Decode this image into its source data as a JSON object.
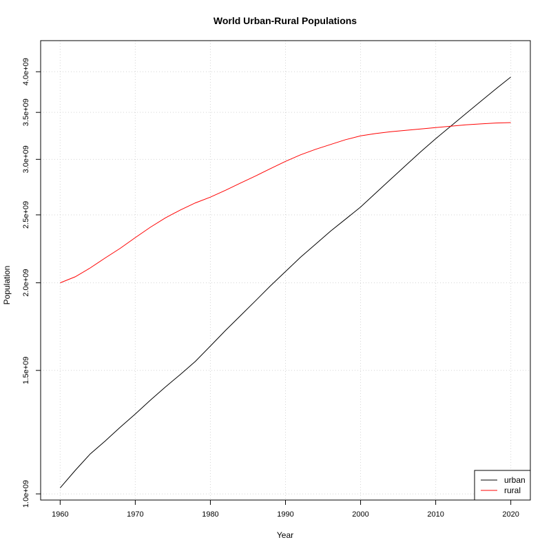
{
  "chart_data": {
    "type": "line",
    "title": "World Urban-Rural Populations",
    "xlabel": "Year",
    "ylabel": "Population",
    "x_ticks": [
      1960,
      1970,
      1980,
      1990,
      2000,
      2010,
      2020
    ],
    "y_ticks": [
      1000000000.0,
      1500000000.0,
      2000000000.0,
      2500000000.0,
      3000000000.0,
      3500000000.0,
      4000000000.0
    ],
    "y_tick_labels": [
      "1.0e+09",
      "1.5e+09",
      "2.0e+09",
      "2.5e+09",
      "3.0e+09",
      "3.5e+09",
      "4.0e+09"
    ],
    "xlim": [
      1957.4,
      2022.6
    ],
    "ylim": [
      980000000.0,
      4430000000.0
    ],
    "y_scale": "log",
    "grid": true,
    "legend_position": "bottom-right",
    "series": [
      {
        "name": "urban",
        "color": "#000000",
        "x": [
          1960,
          1962,
          1964,
          1966,
          1968,
          1970,
          1972,
          1974,
          1976,
          1978,
          1980,
          1982,
          1984,
          1986,
          1988,
          1990,
          1992,
          1994,
          1996,
          1998,
          2000,
          2002,
          2004,
          2006,
          2008,
          2010,
          2012,
          2014,
          2016,
          2018,
          2020
        ],
        "y": [
          1020000000.0,
          1080000000.0,
          1140000000.0,
          1190000000.0,
          1245000000.0,
          1300000000.0,
          1360000000.0,
          1420000000.0,
          1480000000.0,
          1545000000.0,
          1625000000.0,
          1710000000.0,
          1795000000.0,
          1885000000.0,
          1980000000.0,
          2075000000.0,
          2175000000.0,
          2270000000.0,
          2370000000.0,
          2465000000.0,
          2565000000.0,
          2685000000.0,
          2810000000.0,
          2940000000.0,
          3075000000.0,
          3210000000.0,
          3345000000.0,
          3485000000.0,
          3630000000.0,
          3780000000.0,
          3930000000.0
        ]
      },
      {
        "name": "rural",
        "color": "#ff0000",
        "x": [
          1960,
          1962,
          1964,
          1966,
          1968,
          1970,
          1972,
          1974,
          1976,
          1978,
          1980,
          1982,
          1984,
          1986,
          1988,
          1990,
          1992,
          1994,
          1996,
          1998,
          2000,
          2002,
          2004,
          2006,
          2008,
          2010,
          2012,
          2014,
          2016,
          2018,
          2020
        ],
        "y": [
          2000000000.0,
          2040000000.0,
          2100000000.0,
          2170000000.0,
          2240000000.0,
          2320000000.0,
          2400000000.0,
          2475000000.0,
          2540000000.0,
          2600000000.0,
          2650000000.0,
          2710000000.0,
          2775000000.0,
          2840000000.0,
          2910000000.0,
          2980000000.0,
          3045000000.0,
          3100000000.0,
          3150000000.0,
          3200000000.0,
          3240000000.0,
          3265000000.0,
          3285000000.0,
          3300000000.0,
          3315000000.0,
          3330000000.0,
          3345000000.0,
          3360000000.0,
          3370000000.0,
          3380000000.0,
          3385000000.0
        ]
      }
    ]
  }
}
